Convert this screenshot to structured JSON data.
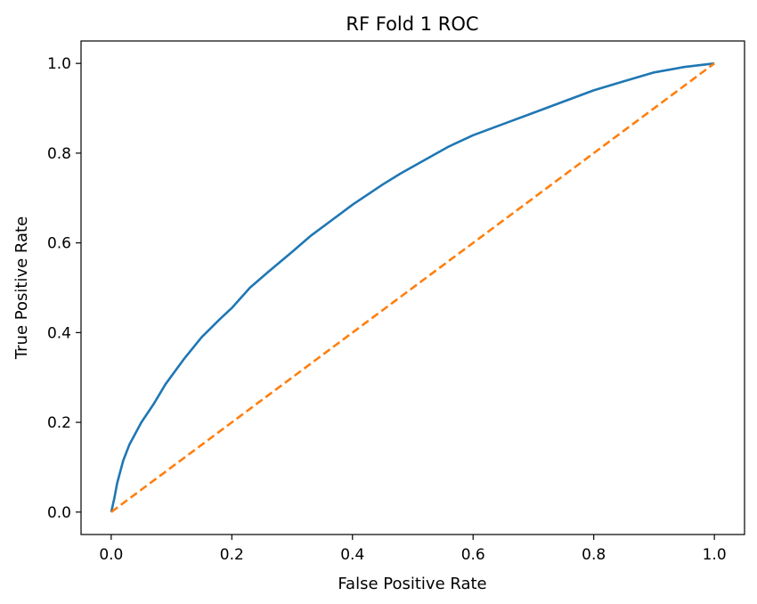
{
  "chart_data": {
    "type": "line",
    "title": "RF Fold 1 ROC",
    "xlabel": "False Positive Rate",
    "ylabel": "True Positive Rate",
    "xlim": [
      -0.05,
      1.05
    ],
    "ylim": [
      -0.05,
      1.05
    ],
    "xticks": [
      "0.0",
      "0.2",
      "0.4",
      "0.6",
      "0.8",
      "1.0"
    ],
    "yticks": [
      "0.0",
      "0.2",
      "0.4",
      "0.6",
      "0.8",
      "1.0"
    ],
    "grid": false,
    "series": [
      {
        "style": "solid",
        "color": "#1f77b4",
        "x": [
          0.0,
          0.005,
          0.01,
          0.02,
          0.03,
          0.05,
          0.07,
          0.09,
          0.12,
          0.15,
          0.18,
          0.2,
          0.23,
          0.26,
          0.3,
          0.33,
          0.36,
          0.4,
          0.45,
          0.48,
          0.52,
          0.56,
          0.6,
          0.65,
          0.7,
          0.75,
          0.8,
          0.85,
          0.9,
          0.95,
          1.0
        ],
        "y": [
          0.0,
          0.03,
          0.065,
          0.115,
          0.15,
          0.2,
          0.24,
          0.285,
          0.34,
          0.39,
          0.43,
          0.455,
          0.5,
          0.535,
          0.58,
          0.615,
          0.645,
          0.685,
          0.73,
          0.755,
          0.785,
          0.815,
          0.84,
          0.865,
          0.89,
          0.915,
          0.94,
          0.96,
          0.98,
          0.992,
          1.0
        ]
      },
      {
        "style": "dashed",
        "color": "#ff7f0e",
        "x": [
          0.0,
          1.0
        ],
        "y": [
          0.0,
          1.0
        ]
      }
    ]
  }
}
